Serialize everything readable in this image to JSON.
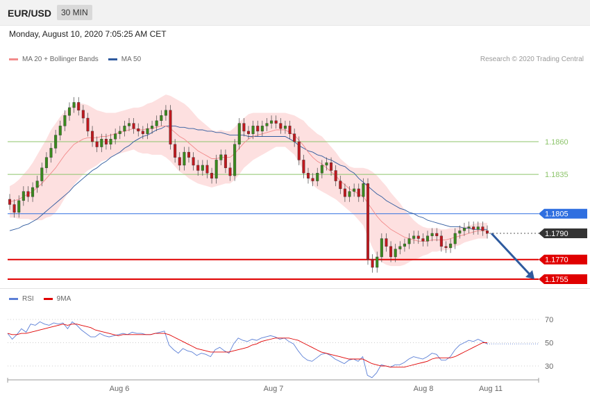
{
  "header": {
    "symbol": "EUR/USD",
    "timeframe": "30 MIN",
    "datetime": "Monday, August 10, 2020 7:05:25 AM CET"
  },
  "legend_main": [
    {
      "label": "MA 20 + Bollinger Bands",
      "color": "#f28b8b"
    },
    {
      "label": "MA 50",
      "color": "#2e5a9e"
    }
  ],
  "legend_rsi": [
    {
      "label": "RSI",
      "color": "#5b7fd6"
    },
    {
      "label": "9MA",
      "color": "#e00000"
    }
  ],
  "copyright": "Research © 2020 Trading Central",
  "colors": {
    "up": "#3a8a1e",
    "down": "#c0191f",
    "band": "#fde0e0",
    "ma20": "#f28b8b",
    "ma50": "#2e5a9e",
    "support": "#e00000",
    "pivot": "#2f6fe0",
    "resistance": "#8cc46a",
    "arrow": "#2e5a9e"
  },
  "chart_data": [
    {
      "type": "candlestick",
      "title": "EUR/USD",
      "ylim": [
        1.1735,
        1.1905
      ],
      "x_labels": [
        "Aug 6",
        "Aug 7",
        "Aug 8",
        "Aug 11"
      ],
      "levels": [
        {
          "value": 1.186,
          "label": "1.1860",
          "kind": "resistance"
        },
        {
          "value": 1.1835,
          "label": "1.1835",
          "kind": "resistance"
        },
        {
          "value": 1.1805,
          "label": "1.1805",
          "kind": "pivot"
        },
        {
          "value": 1.179,
          "label": "1.1790",
          "kind": "last"
        },
        {
          "value": 1.177,
          "label": "1.1770",
          "kind": "support"
        },
        {
          "value": 1.1755,
          "label": "1.1755",
          "kind": "support"
        }
      ],
      "close": [
        1.1812,
        1.1806,
        1.1815,
        1.1822,
        1.1818,
        1.1825,
        1.183,
        1.184,
        1.1848,
        1.1855,
        1.1865,
        1.1872,
        1.188,
        1.1886,
        1.189,
        1.1884,
        1.1878,
        1.1868,
        1.186,
        1.1856,
        1.1862,
        1.1858,
        1.1862,
        1.1866,
        1.1868,
        1.1872,
        1.1874,
        1.187,
        1.1868,
        1.1866,
        1.187,
        1.1872,
        1.1876,
        1.188,
        1.1884,
        1.1858,
        1.1848,
        1.1842,
        1.1852,
        1.1848,
        1.1842,
        1.1838,
        1.1842,
        1.1836,
        1.1832,
        1.1846,
        1.185,
        1.184,
        1.1834,
        1.1858,
        1.1874,
        1.1868,
        1.1866,
        1.1872,
        1.1868,
        1.1872,
        1.1874,
        1.1876,
        1.1874,
        1.187,
        1.1872,
        1.1866,
        1.186,
        1.1846,
        1.1836,
        1.1832,
        1.183,
        1.1836,
        1.1842,
        1.1844,
        1.1838,
        1.183,
        1.1824,
        1.1818,
        1.1822,
        1.1824,
        1.1818,
        1.1828,
        1.177,
        1.1764,
        1.1772,
        1.1786,
        1.178,
        1.1772,
        1.1778,
        1.178,
        1.1782,
        1.1786,
        1.1788,
        1.1786,
        1.1784,
        1.1788,
        1.179,
        1.1788,
        1.178,
        1.1779,
        1.1782,
        1.179,
        1.1792,
        1.1794,
        1.1795,
        1.1793,
        1.1795,
        1.1792,
        1.179
      ],
      "ma20": [
        1.1814,
        1.1815,
        1.1816,
        1.1818,
        1.182,
        1.1822,
        1.1825,
        1.1828,
        1.1832,
        1.1836,
        1.184,
        1.1845,
        1.185,
        1.1854,
        1.1858,
        1.186,
        1.1862,
        1.1863,
        1.1863,
        1.1863,
        1.1864,
        1.1864,
        1.1865,
        1.1866,
        1.1867,
        1.1868,
        1.1869,
        1.187,
        1.1869,
        1.1869,
        1.187,
        1.187,
        1.1871,
        1.1872,
        1.1872,
        1.187,
        1.1867,
        1.1864,
        1.1862,
        1.1859,
        1.1856,
        1.1853,
        1.1851,
        1.1849,
        1.1847,
        1.1847,
        1.1848,
        1.1848,
        1.1848,
        1.1851,
        1.1855,
        1.1859,
        1.1862,
        1.1864,
        1.1865,
        1.1866,
        1.1867,
        1.1868,
        1.1869,
        1.1869,
        1.1869,
        1.1867,
        1.1865,
        1.1861,
        1.1857,
        1.1852,
        1.1848,
        1.1845,
        1.1843,
        1.184,
        1.1837,
        1.1834,
        1.183,
        1.1827,
        1.1824,
        1.1822,
        1.182,
        1.1818,
        1.1813,
        1.1808,
        1.1803,
        1.1799,
        1.1796,
        1.1793,
        1.1791,
        1.1789,
        1.1787,
        1.1786,
        1.1785,
        1.1784,
        1.1784,
        1.1784,
        1.1785,
        1.1785,
        1.1785,
        1.1785,
        1.1786,
        1.1787,
        1.1788,
        1.1789,
        1.179,
        1.1791,
        1.1792,
        1.1792,
        1.1792
      ],
      "ma50": [
        1.1792,
        1.1793,
        1.1794,
        1.1796,
        1.1797,
        1.1799,
        1.1801,
        1.1804,
        1.1807,
        1.181,
        1.1813,
        1.1816,
        1.1819,
        1.1822,
        1.1826,
        1.1829,
        1.1832,
        1.1835,
        1.1838,
        1.184,
        1.1843,
        1.1845,
        1.1848,
        1.185,
        1.1852,
        1.1855,
        1.1857,
        1.186,
        1.1862,
        1.1864,
        1.1865,
        1.1867,
        1.1869,
        1.187,
        1.1872,
        1.1872,
        1.1872,
        1.1871,
        1.1871,
        1.187,
        1.187,
        1.1869,
        1.1869,
        1.1868,
        1.1868,
        1.1867,
        1.1867,
        1.1866,
        1.1865,
        1.1865,
        1.1865,
        1.1865,
        1.1864,
        1.1864,
        1.1864,
        1.1864,
        1.1864,
        1.1864,
        1.1864,
        1.1864,
        1.1864,
        1.1862,
        1.186,
        1.1857,
        1.1855,
        1.1853,
        1.1852,
        1.185,
        1.1849,
        1.1847,
        1.1846,
        1.1844,
        1.1842,
        1.1841,
        1.1838,
        1.1836,
        1.1832,
        1.1829,
        1.1826,
        1.1823,
        1.182,
        1.1818,
        1.1815,
        1.1813,
        1.1811,
        1.1809,
        1.1808,
        1.1806,
        1.1805,
        1.1803,
        1.1802,
        1.18,
        1.1799,
        1.1798,
        1.1797,
        1.1796,
        1.1795,
        1.1795,
        1.1795,
        1.1794,
        1.1794,
        1.1793,
        1.1793,
        1.1793,
        1.1793
      ],
      "band_width": [
        0.0012,
        0.0013,
        0.0015,
        0.0017,
        0.0019,
        0.0022,
        0.0025,
        0.0028,
        0.003,
        0.0033,
        0.0034,
        0.0034,
        0.0033,
        0.0032,
        0.0031,
        0.0029,
        0.0027,
        0.0025,
        0.0023,
        0.0021,
        0.0019,
        0.0018,
        0.0017,
        0.0016,
        0.0016,
        0.0016,
        0.0016,
        0.0016,
        0.0017,
        0.0018,
        0.0019,
        0.002,
        0.0021,
        0.0022,
        0.0024,
        0.0025,
        0.0026,
        0.0027,
        0.0027,
        0.0027,
        0.0026,
        0.0025,
        0.0024,
        0.0023,
        0.0022,
        0.0021,
        0.0021,
        0.002,
        0.002,
        0.002,
        0.002,
        0.0019,
        0.0019,
        0.0018,
        0.0017,
        0.0016,
        0.0015,
        0.0014,
        0.0013,
        0.0013,
        0.0013,
        0.0014,
        0.0015,
        0.0017,
        0.0019,
        0.002,
        0.0021,
        0.0021,
        0.0021,
        0.002,
        0.0019,
        0.0018,
        0.0017,
        0.0017,
        0.0017,
        0.0018,
        0.002,
        0.0022,
        0.0026,
        0.0029,
        0.0031,
        0.0031,
        0.003,
        0.0028,
        0.0026,
        0.0024,
        0.0021,
        0.0018,
        0.0015,
        0.0013,
        0.0011,
        0.001,
        0.0009,
        0.0009,
        0.0008,
        0.0008,
        0.0008,
        0.0007,
        0.0007,
        0.0006,
        0.0006,
        0.0006,
        0.0006,
        0.0006,
        0.0006
      ],
      "projection": {
        "from": 1.179,
        "to": 1.1755
      }
    },
    {
      "type": "line",
      "title": "RSI",
      "ylim": [
        20,
        80
      ],
      "y_ticks": [
        "70",
        "50",
        "30"
      ],
      "y_tick_values": [
        70,
        50,
        30
      ],
      "series": [
        {
          "name": "RSI",
          "values": [
            58,
            53,
            57,
            62,
            59,
            66,
            65,
            68,
            66,
            65,
            67,
            66,
            67,
            62,
            68,
            65,
            61,
            58,
            55,
            55,
            58,
            56,
            55,
            56,
            57,
            58,
            57,
            59,
            58,
            58,
            57,
            57,
            58,
            59,
            60,
            48,
            44,
            41,
            45,
            43,
            42,
            39,
            41,
            40,
            38,
            44,
            46,
            43,
            41,
            49,
            54,
            52,
            51,
            53,
            52,
            54,
            55,
            56,
            55,
            53,
            54,
            51,
            49,
            43,
            38,
            35,
            34,
            37,
            40,
            41,
            39,
            36,
            34,
            32,
            35,
            36,
            34,
            38,
            22,
            20,
            24,
            31,
            30,
            29,
            31,
            31,
            33,
            36,
            38,
            37,
            36,
            38,
            41,
            40,
            35,
            35,
            38,
            44,
            48,
            50,
            52,
            51,
            53,
            51,
            49
          ]
        },
        {
          "name": "9MA",
          "values": [
            58,
            57,
            57,
            58,
            58,
            59,
            60,
            61,
            62,
            63,
            64,
            65,
            66,
            65,
            66,
            66,
            65,
            64,
            63,
            61,
            60,
            59,
            58,
            57,
            56,
            57,
            57,
            57,
            57,
            57,
            57,
            57,
            58,
            58,
            58,
            57,
            55,
            53,
            51,
            49,
            47,
            45,
            44,
            43,
            42,
            42,
            42,
            42,
            42,
            43,
            44,
            45,
            46,
            48,
            49,
            51,
            52,
            53,
            54,
            54,
            54,
            54,
            53,
            52,
            50,
            48,
            46,
            44,
            42,
            41,
            40,
            39,
            38,
            37,
            36,
            36,
            36,
            36,
            34,
            32,
            31,
            30,
            30,
            29,
            29,
            29,
            29,
            30,
            31,
            32,
            33,
            34,
            36,
            37,
            37,
            37,
            37,
            38,
            40,
            42,
            44,
            46,
            48,
            50,
            50
          ]
        }
      ]
    }
  ]
}
